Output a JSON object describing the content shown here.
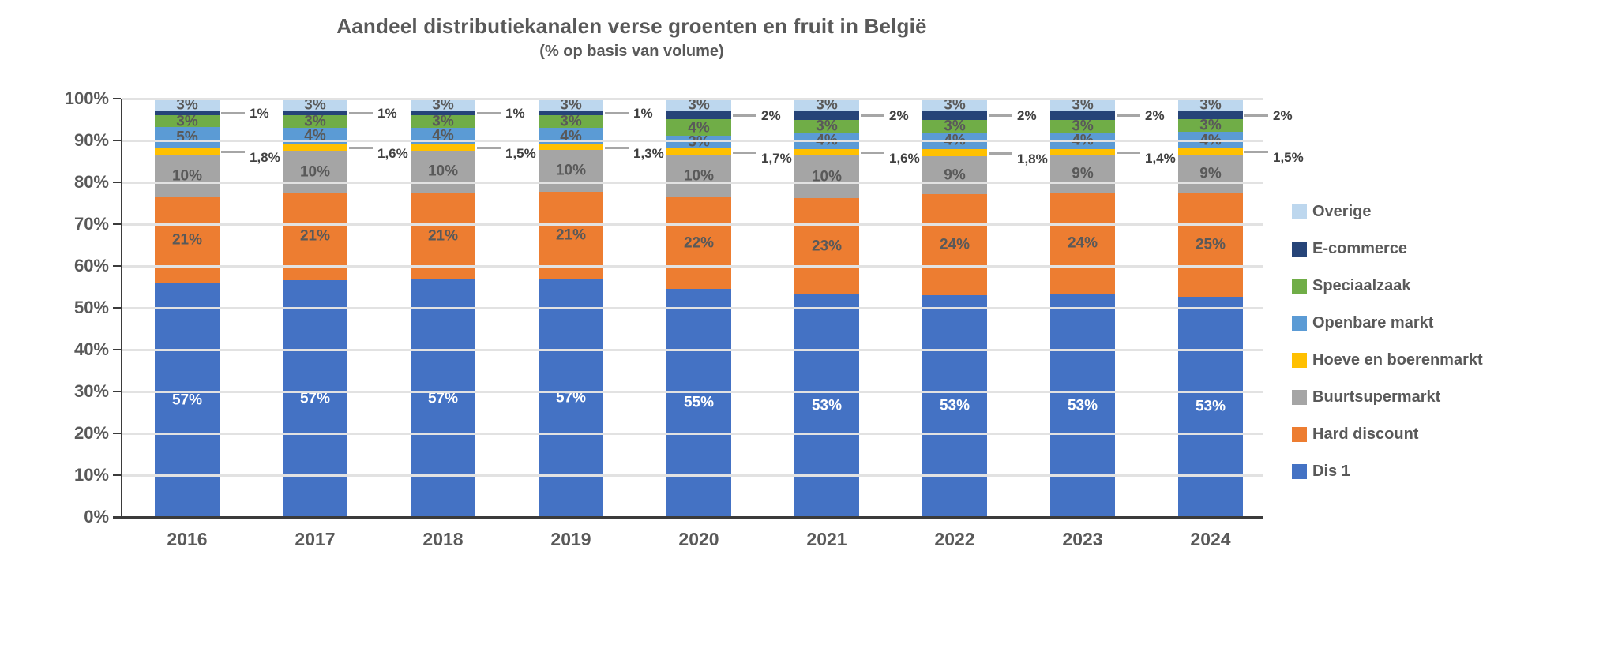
{
  "chart_data": {
    "type": "bar",
    "stacked": true,
    "normalized_to_100": true,
    "title": "Aandeel distributiekanalen verse groenten en fruit in België",
    "subtitle": "(% op basis van volume)",
    "categories": [
      "2016",
      "2017",
      "2018",
      "2019",
      "2020",
      "2021",
      "2022",
      "2023",
      "2024"
    ],
    "ylim": [
      0,
      100
    ],
    "yticks": [
      "0%",
      "10%",
      "20%",
      "30%",
      "40%",
      "50%",
      "60%",
      "70%",
      "80%",
      "90%",
      "100%"
    ],
    "grid": "horizontal",
    "legend_position": "right",
    "series": [
      {
        "name": "Dis 1",
        "color": "#4472C4",
        "label_style": "inside",
        "label_color": "#ffffff",
        "values": [
          57,
          57,
          57,
          57,
          55,
          53,
          53,
          53,
          53
        ],
        "labels": [
          "57%",
          "57%",
          "57%",
          "57%",
          "55%",
          "53%",
          "53%",
          "53%",
          "53%"
        ]
      },
      {
        "name": "Hard discount",
        "color": "#ED7D31",
        "label_style": "inside",
        "label_color": "#595959",
        "values": [
          21,
          21,
          21,
          21,
          22,
          23,
          24,
          24,
          25
        ],
        "labels": [
          "21%",
          "21%",
          "21%",
          "21%",
          "22%",
          "23%",
          "24%",
          "24%",
          "25%"
        ]
      },
      {
        "name": "Buurtsupermarkt",
        "color": "#A5A5A5",
        "label_style": "inside",
        "label_color": "#595959",
        "values": [
          10,
          10,
          10,
          10,
          10,
          10,
          9,
          9,
          9
        ],
        "labels": [
          "10%",
          "10%",
          "10%",
          "10%",
          "10%",
          "10%",
          "9%",
          "9%",
          "9%"
        ]
      },
      {
        "name": "Hoeve en boerenmarkt",
        "color": "#FFC000",
        "label_style": "callout",
        "label_color": "#404040",
        "values": [
          1.8,
          1.6,
          1.5,
          1.3,
          1.7,
          1.6,
          1.8,
          1.4,
          1.5
        ],
        "labels": [
          "1,8%",
          "1,6%",
          "1,5%",
          "1,3%",
          "1,7%",
          "1,6%",
          "1,8%",
          "1,4%",
          "1,5%"
        ]
      },
      {
        "name": "Openbare markt",
        "color": "#5B9BD5",
        "label_style": "inside",
        "label_color": "#595959",
        "values": [
          5,
          4,
          4,
          4,
          3,
          4,
          4,
          4,
          4
        ],
        "labels": [
          "5%",
          "4%",
          "4%",
          "4%",
          "3%",
          "4%",
          "4%",
          "4%",
          "4%"
        ]
      },
      {
        "name": "Speciaalzaak",
        "color": "#70AD47",
        "label_style": "inside",
        "label_color": "#595959",
        "values": [
          3,
          3,
          3,
          3,
          4,
          3,
          3,
          3,
          3
        ],
        "labels": [
          "3%",
          "3%",
          "3%",
          "3%",
          "4%",
          "3%",
          "3%",
          "3%",
          "3%"
        ]
      },
      {
        "name": "E-commerce",
        "color": "#264478",
        "label_style": "callout",
        "label_color": "#404040",
        "values": [
          1,
          1,
          1,
          1,
          2,
          2,
          2,
          2,
          2
        ],
        "labels": [
          "1%",
          "1%",
          "1%",
          "1%",
          "2%",
          "2%",
          "2%",
          "2%",
          "2%"
        ]
      },
      {
        "name": "Overige",
        "color": "#BDD7EE",
        "label_style": "inside",
        "label_color": "#595959",
        "values": [
          3,
          3,
          3,
          3,
          3,
          3,
          3,
          3,
          3
        ],
        "labels": [
          "3%",
          "3%",
          "3%",
          "3%",
          "3%",
          "3%",
          "3%",
          "3%",
          "3%"
        ]
      }
    ],
    "legend": [
      "Overige",
      "E-commerce",
      "Speciaalzaak",
      "Openbare markt",
      "Hoeve en boerenmarkt",
      "Buurtsupermarkt",
      "Hard discount",
      "Dis 1"
    ]
  }
}
